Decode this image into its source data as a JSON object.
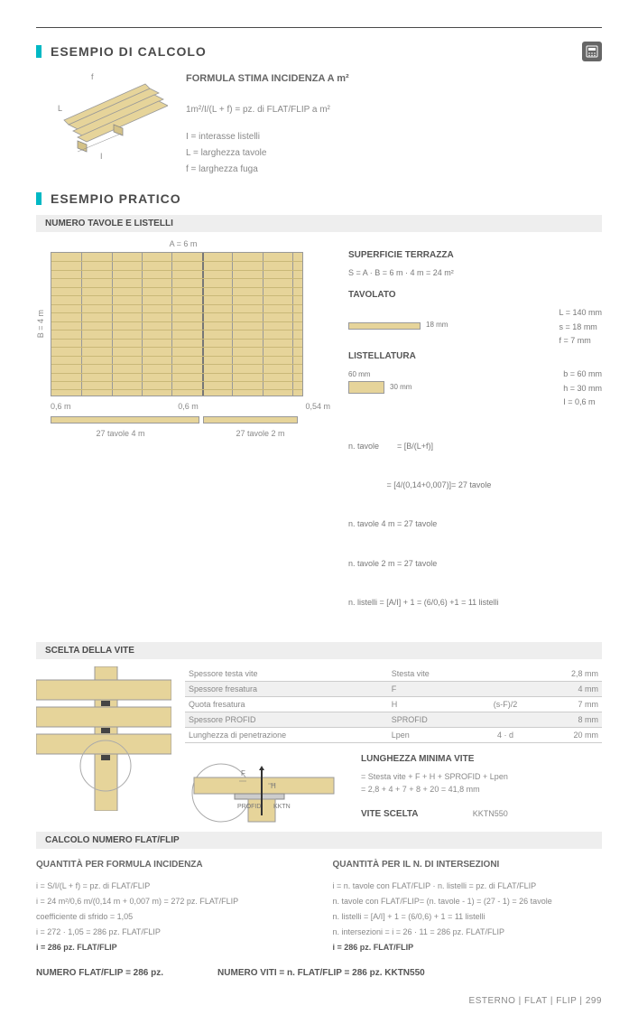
{
  "header1": {
    "title": "ESEMPIO DI CALCOLO"
  },
  "formula": {
    "title": "FORMULA STIMA INCIDENZA A m²",
    "main": "1m²/I/(L + f) = pz. di FLAT/FLIP a m²",
    "legend": [
      "I = interasse listelli",
      "L = larghezza tavole",
      "f = larghezza fuga"
    ],
    "dia_labels": {
      "f": "f",
      "L": "L",
      "I": "I"
    }
  },
  "header2": {
    "title": "ESEMPIO PRATICO"
  },
  "sub1": "NUMERO TAVOLE E LISTELLI",
  "deck": {
    "top_label": "A = 6 m",
    "left_label": "B = 4 m",
    "bottom_dims": [
      "0,6 m",
      "0,6 m",
      "0,54 m"
    ],
    "bottom_tav": [
      "27 tavole 4 m",
      "27 tavole 2 m"
    ]
  },
  "superficie": {
    "h": "SUPERFICIE TERRAZZA",
    "eq": "S = A · B = 6 m · 4 m = 24 m²"
  },
  "tavolato": {
    "h": "TAVOLATO",
    "w": "140 mm",
    "t": "18 mm",
    "specs": [
      "L = 140 mm",
      "s = 18 mm",
      "f = 7 mm"
    ]
  },
  "listellatura": {
    "h": "LISTELLATURA",
    "w": "60 mm",
    "t": "30 mm",
    "specs": [
      "b = 60 mm",
      "h = 30 mm",
      "I = 0,6 m"
    ]
  },
  "calc_tavole": [
    "n. tavole        = [B/(L+f)]",
    "                 = [4/(0,14+0,007)]= 27 tavole",
    "n. tavole 4 m = 27 tavole",
    "n. tavole 2 m = 27 tavole",
    "n. listelli = [A/I] + 1 = (6/0,6) +1 = 11 listelli"
  ],
  "sub2": "SCELTA DELLA VITE",
  "screw_table": {
    "rows": [
      {
        "label": "Spessore testa vite",
        "sym": "Stesta vite",
        "mid": "",
        "val": "2,8 mm",
        "grey": false
      },
      {
        "label": "Spessore fresatura",
        "sym": "F",
        "mid": "",
        "val": "4 mm",
        "grey": true
      },
      {
        "label": "Quota fresatura",
        "sym": "H",
        "mid": "(s-F)/2",
        "val": "7 mm",
        "grey": false
      },
      {
        "label": "Spessore PROFID",
        "sym": "SPROFID",
        "mid": "",
        "val": "8 mm",
        "grey": true
      },
      {
        "label": "Lunghezza di penetrazione",
        "sym": "Lpen",
        "mid": "4 · d",
        "val": "20 mm",
        "grey": false
      }
    ]
  },
  "lung_min": {
    "h": "LUNGHEZZA MINIMA VITE",
    "l1": "= Stesta vite + F + H + SPROFID + Lpen",
    "l2": "= 2,8 + 4 + 7 + 8 + 20 = 41,8 mm"
  },
  "vite_scelta": {
    "label": "VITE SCELTA",
    "val": "KKTN550"
  },
  "cross_labels": {
    "F": "F",
    "H": "H",
    "profid": "PROFID",
    "kktn": "KKTN"
  },
  "sub3": "CALCOLO NUMERO FLAT/FLIP",
  "quant_formula": {
    "h": "QUANTITÀ PER FORMULA INCIDENZA",
    "lines": [
      "i = S/I/(L + f) = pz. di FLAT/FLIP",
      "i = 24 m²/0,6 m/(0,14 m + 0,007 m) = 272 pz. FLAT/FLIP",
      " ",
      "coefficiente di sfrido = 1,05",
      "i = 272 · 1,05 = 286 pz. FLAT/FLIP",
      "i = 286 pz. FLAT/FLIP"
    ]
  },
  "quant_inter": {
    "h": "QUANTITÀ PER IL N. DI INTERSEZIONI",
    "lines": [
      "i = n. tavole con FLAT/FLIP · n. listelli = pz. di FLAT/FLIP",
      "n. tavole con FLAT/FLIP= (n. tavole - 1) = (27 - 1) = 26 tavole",
      "n. listelli = [A/I] + 1 = (6/0,6) + 1 = 11 listelli",
      " ",
      "n. intersezioni = i = 26 · 11 = 286 pz. FLAT/FLIP",
      "i = 286 pz. FLAT/FLIP"
    ]
  },
  "bottom": {
    "left": "NUMERO FLAT/FLIP = 286 pz.",
    "right": "NUMERO VITI = n. FLAT/FLIP = 286 pz. KKTN550"
  },
  "footer": {
    "text": "ESTERNO  |  FLAT | FLIP  |  299"
  },
  "colors": {
    "wood": "#e6d49a",
    "wood_dark": "#c9b878",
    "cyan": "#00b8c4"
  }
}
